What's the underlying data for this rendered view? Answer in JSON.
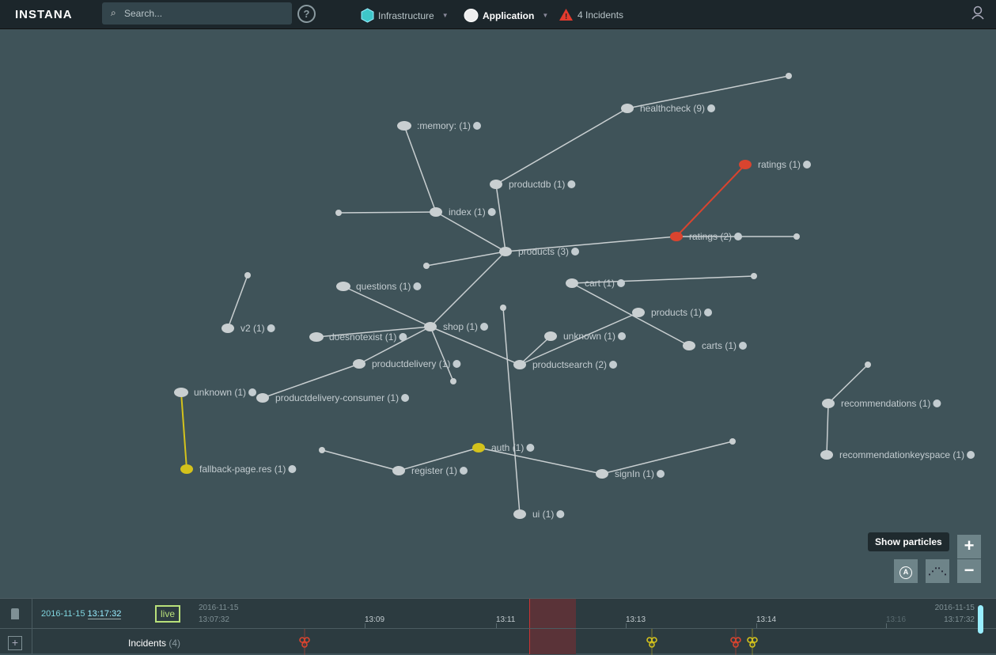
{
  "header": {
    "logo": "INSTANA",
    "search_placeholder": "Search...",
    "help": "?",
    "nav": [
      {
        "label": "Infrastructure",
        "icon": "hexagon-stack-icon"
      },
      {
        "label": "Application",
        "icon": "database-icon"
      },
      {
        "label": "4 Incidents",
        "icon": "warning-triangle-icon"
      }
    ],
    "user_icon": "user-icon"
  },
  "colors": {
    "accent": "#5ee0e8",
    "error": "#d9442f",
    "warning": "#d4c21c",
    "node": "#c9cfd1",
    "edge": "#c9cfd1"
  },
  "graph": {
    "nodes": [
      {
        "label": "healthcheck (9)"
      },
      {
        "label": ""
      },
      {
        "label": ":memory: (1)"
      },
      {
        "label": "ratings (1)",
        "status": "error"
      },
      {
        "label": "productdb (1)"
      },
      {
        "label": "index (1)"
      },
      {
        "label": ""
      },
      {
        "label": "products (3)"
      },
      {
        "label": ""
      },
      {
        "label": "ratings (2)",
        "status": "error"
      },
      {
        "label": ""
      },
      {
        "label": ""
      },
      {
        "label": "questions (1)"
      },
      {
        "label": "cart (1)"
      },
      {
        "label": ""
      },
      {
        "label": ""
      },
      {
        "label": "products (1)"
      },
      {
        "label": "v2 (1)"
      },
      {
        "label": "shop (1)"
      },
      {
        "label": "doesnotexist (1)"
      },
      {
        "label": "unknown (1)"
      },
      {
        "label": "carts (1)"
      },
      {
        "label": "productdelivery (1)"
      },
      {
        "label": "productsearch (2)"
      },
      {
        "label": ""
      },
      {
        "label": "unknown (1)"
      },
      {
        "label": "productdelivery-consumer (1)"
      },
      {
        "label": ""
      },
      {
        "label": "recommendations (1)"
      },
      {
        "label": "recommendationkeyspace (1)"
      },
      {
        "label": "fallback-page.res (1)",
        "status": "warning"
      },
      {
        "label": ""
      },
      {
        "label": "auth (1)",
        "status": "warning"
      },
      {
        "label": "register (1)"
      },
      {
        "label": ""
      },
      {
        "label": "signIn (1)"
      },
      {
        "label": "ui (1)"
      }
    ]
  },
  "controls": {
    "tooltip": "Show particles",
    "zoom_in": "+",
    "zoom_out": "−"
  },
  "timeline": {
    "current_date": "2016-11-15",
    "current_time": "13:17:32",
    "live": "live",
    "start_date": "2016-11-15",
    "start_time": "13:07:32",
    "end_date": "2016-11-15",
    "end_time": "13:17:32",
    "ticks": [
      "13:09",
      "13:11",
      "13:13",
      "13:14",
      "13:16"
    ],
    "incidents_label": "Incidents",
    "incidents_count": "(4)",
    "incidents": [
      {
        "severity": "error"
      },
      {
        "severity": "warning"
      },
      {
        "severity": "error"
      },
      {
        "severity": "warning"
      }
    ]
  }
}
